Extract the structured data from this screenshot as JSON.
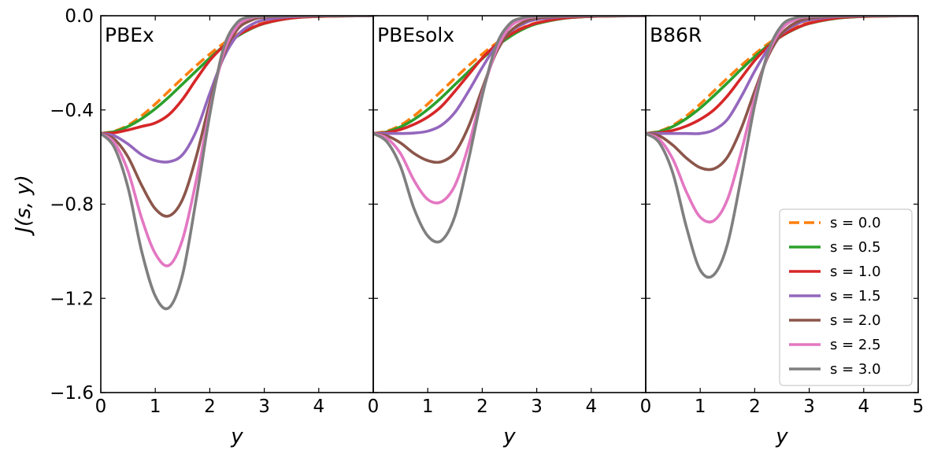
{
  "chart_data": {
    "type": "line",
    "shared_y": true,
    "ylabel": "J(s, y)",
    "ylim": [
      -1.6,
      0.0
    ],
    "yticks": [
      0.0,
      -0.4,
      -0.8,
      -1.2,
      -1.6
    ],
    "ytick_labels": [
      "0.0",
      "−0.4",
      "−0.8",
      "−1.2",
      "−1.6"
    ],
    "grid": false,
    "legend": {
      "panel": 3,
      "placement": "lower-right"
    },
    "series_styles": [
      {
        "name": "s = 0.0",
        "color": "#ff7f0e",
        "dash": true
      },
      {
        "name": "s = 0.5",
        "color": "#2ca02c",
        "dash": false
      },
      {
        "name": "s = 1.0",
        "color": "#d62728",
        "dash": false
      },
      {
        "name": "s = 1.5",
        "color": "#9467bd",
        "dash": false
      },
      {
        "name": "s = 2.0",
        "color": "#8c564b",
        "dash": false
      },
      {
        "name": "s = 2.5",
        "color": "#e377c2",
        "dash": false
      },
      {
        "name": "s = 3.0",
        "color": "#7f7f7f",
        "dash": false
      }
    ],
    "panels": [
      {
        "title": "PBEx",
        "xlabel": "y",
        "xlim": [
          0,
          5
        ],
        "xticks": [
          0,
          1,
          2,
          3,
          4
        ],
        "x": [
          0,
          0.25,
          0.5,
          0.75,
          1.0,
          1.25,
          1.5,
          1.75,
          2.0,
          2.25,
          2.5,
          2.75,
          3.0,
          3.5,
          4.0,
          4.5,
          5.0
        ],
        "series": [
          {
            "name": "s = 0.0",
            "values": [
              -0.5,
              -0.49,
              -0.465,
              -0.425,
              -0.375,
              -0.32,
              -0.265,
              -0.212,
              -0.163,
              -0.118,
              -0.08,
              -0.05,
              -0.03,
              -0.01,
              -0.003,
              -0.001,
              0.0
            ]
          },
          {
            "name": "s = 0.5",
            "values": [
              -0.5,
              -0.492,
              -0.47,
              -0.437,
              -0.395,
              -0.345,
              -0.29,
              -0.235,
              -0.18,
              -0.13,
              -0.088,
              -0.056,
              -0.033,
              -0.01,
              -0.003,
              -0.001,
              0.0
            ]
          },
          {
            "name": "s = 1.0",
            "values": [
              -0.5,
              -0.497,
              -0.485,
              -0.47,
              -0.455,
              -0.42,
              -0.355,
              -0.27,
              -0.19,
              -0.13,
              -0.085,
              -0.054,
              -0.032,
              -0.01,
              -0.003,
              -0.001,
              0.0
            ]
          },
          {
            "name": "s = 1.5",
            "values": [
              -0.5,
              -0.51,
              -0.545,
              -0.59,
              -0.615,
              -0.62,
              -0.59,
              -0.49,
              -0.33,
              -0.18,
              -0.085,
              -0.04,
              -0.018,
              -0.004,
              -0.001,
              0.0,
              0.0
            ]
          },
          {
            "name": "s = 2.0",
            "values": [
              -0.5,
              -0.525,
              -0.6,
              -0.72,
              -0.82,
              -0.85,
              -0.78,
              -0.6,
              -0.37,
              -0.17,
              -0.06,
              -0.02,
              -0.006,
              -0.001,
              0.0,
              0.0,
              0.0
            ]
          },
          {
            "name": "s = 2.5",
            "values": [
              -0.5,
              -0.54,
              -0.66,
              -0.86,
              -1.01,
              -1.06,
              -0.95,
              -0.7,
              -0.4,
              -0.16,
              -0.045,
              -0.01,
              -0.002,
              0.0,
              0.0,
              0.0,
              0.0
            ]
          },
          {
            "name": "s = 3.0",
            "values": [
              -0.5,
              -0.56,
              -0.73,
              -1.0,
              -1.19,
              -1.24,
              -1.1,
              -0.78,
              -0.42,
              -0.14,
              -0.03,
              -0.005,
              -0.001,
              0.0,
              0.0,
              0.0,
              0.0
            ]
          }
        ]
      },
      {
        "title": "PBEsolx",
        "xlabel": "y",
        "xlim": [
          0,
          5
        ],
        "xticks": [
          0,
          1,
          2,
          3,
          4
        ],
        "x": [
          0,
          0.25,
          0.5,
          0.75,
          1.0,
          1.25,
          1.5,
          1.75,
          2.0,
          2.25,
          2.5,
          2.75,
          3.0,
          3.5,
          4.0,
          4.5,
          5.0
        ],
        "series": [
          {
            "name": "s = 0.0",
            "values": [
              -0.5,
              -0.49,
              -0.465,
              -0.425,
              -0.375,
              -0.32,
              -0.265,
              -0.212,
              -0.163,
              -0.118,
              -0.08,
              -0.05,
              -0.03,
              -0.01,
              -0.003,
              -0.001,
              0.0
            ]
          },
          {
            "name": "s = 0.5",
            "values": [
              -0.5,
              -0.493,
              -0.472,
              -0.44,
              -0.398,
              -0.348,
              -0.292,
              -0.237,
              -0.182,
              -0.132,
              -0.09,
              -0.057,
              -0.034,
              -0.011,
              -0.003,
              -0.001,
              0.0
            ]
          },
          {
            "name": "s = 1.0",
            "values": [
              -0.5,
              -0.496,
              -0.483,
              -0.461,
              -0.43,
              -0.385,
              -0.32,
              -0.25,
              -0.18,
              -0.125,
              -0.082,
              -0.052,
              -0.031,
              -0.01,
              -0.003,
              -0.001,
              0.0
            ]
          },
          {
            "name": "s = 1.5",
            "values": [
              -0.5,
              -0.5,
              -0.5,
              -0.498,
              -0.49,
              -0.465,
              -0.41,
              -0.32,
              -0.22,
              -0.13,
              -0.07,
              -0.035,
              -0.016,
              -0.004,
              -0.001,
              0.0,
              0.0
            ]
          },
          {
            "name": "s = 2.0",
            "values": [
              -0.5,
              -0.51,
              -0.54,
              -0.585,
              -0.615,
              -0.62,
              -0.58,
              -0.47,
              -0.31,
              -0.16,
              -0.07,
              -0.028,
              -0.01,
              -0.002,
              0.0,
              0.0,
              0.0
            ]
          },
          {
            "name": "s = 2.5",
            "values": [
              -0.5,
              -0.52,
              -0.585,
              -0.7,
              -0.78,
              -0.79,
              -0.72,
              -0.55,
              -0.33,
              -0.15,
              -0.05,
              -0.015,
              -0.004,
              0.0,
              0.0,
              0.0,
              0.0
            ]
          },
          {
            "name": "s = 3.0",
            "values": [
              -0.5,
              -0.535,
              -0.64,
              -0.82,
              -0.935,
              -0.955,
              -0.85,
              -0.61,
              -0.34,
              -0.13,
              -0.035,
              -0.008,
              -0.002,
              0.0,
              0.0,
              0.0,
              0.0
            ]
          }
        ]
      },
      {
        "title": "B86R",
        "xlabel": "y",
        "xlim": [
          0,
          5
        ],
        "xticks": [
          0,
          1,
          2,
          3,
          4,
          5
        ],
        "x": [
          0,
          0.25,
          0.5,
          0.75,
          1.0,
          1.25,
          1.5,
          1.75,
          2.0,
          2.25,
          2.5,
          2.75,
          3.0,
          3.5,
          4.0,
          4.5,
          5.0
        ],
        "series": [
          {
            "name": "s = 0.0",
            "values": [
              -0.5,
              -0.49,
              -0.465,
              -0.425,
              -0.375,
              -0.32,
              -0.265,
              -0.212,
              -0.163,
              -0.118,
              -0.08,
              -0.05,
              -0.03,
              -0.01,
              -0.003,
              -0.001,
              0.0
            ]
          },
          {
            "name": "s = 0.5",
            "values": [
              -0.5,
              -0.492,
              -0.47,
              -0.436,
              -0.392,
              -0.34,
              -0.285,
              -0.228,
              -0.174,
              -0.126,
              -0.086,
              -0.055,
              -0.033,
              -0.011,
              -0.003,
              -0.001,
              0.0
            ]
          },
          {
            "name": "s = 1.0",
            "values": [
              -0.5,
              -0.497,
              -0.487,
              -0.468,
              -0.44,
              -0.4,
              -0.34,
              -0.265,
              -0.19,
              -0.13,
              -0.085,
              -0.054,
              -0.032,
              -0.01,
              -0.003,
              -0.001,
              0.0
            ]
          },
          {
            "name": "s = 1.5",
            "values": [
              -0.5,
              -0.5,
              -0.5,
              -0.5,
              -0.5,
              -0.485,
              -0.44,
              -0.345,
              -0.235,
              -0.14,
              -0.076,
              -0.038,
              -0.018,
              -0.004,
              -0.001,
              0.0,
              0.0
            ]
          },
          {
            "name": "s = 2.0",
            "values": [
              -0.5,
              -0.51,
              -0.55,
              -0.605,
              -0.645,
              -0.65,
              -0.6,
              -0.48,
              -0.32,
              -0.17,
              -0.075,
              -0.03,
              -0.011,
              -0.002,
              0.0,
              0.0,
              0.0
            ]
          },
          {
            "name": "s = 2.5",
            "values": [
              -0.5,
              -0.525,
              -0.61,
              -0.75,
              -0.855,
              -0.87,
              -0.78,
              -0.58,
              -0.35,
              -0.16,
              -0.055,
              -0.016,
              -0.004,
              0.0,
              0.0,
              0.0,
              0.0
            ]
          },
          {
            "name": "s = 3.0",
            "values": [
              -0.5,
              -0.54,
              -0.67,
              -0.9,
              -1.08,
              -1.1,
              -0.97,
              -0.69,
              -0.38,
              -0.15,
              -0.04,
              -0.009,
              -0.002,
              0.0,
              0.0,
              0.0,
              0.0
            ]
          }
        ]
      }
    ]
  }
}
